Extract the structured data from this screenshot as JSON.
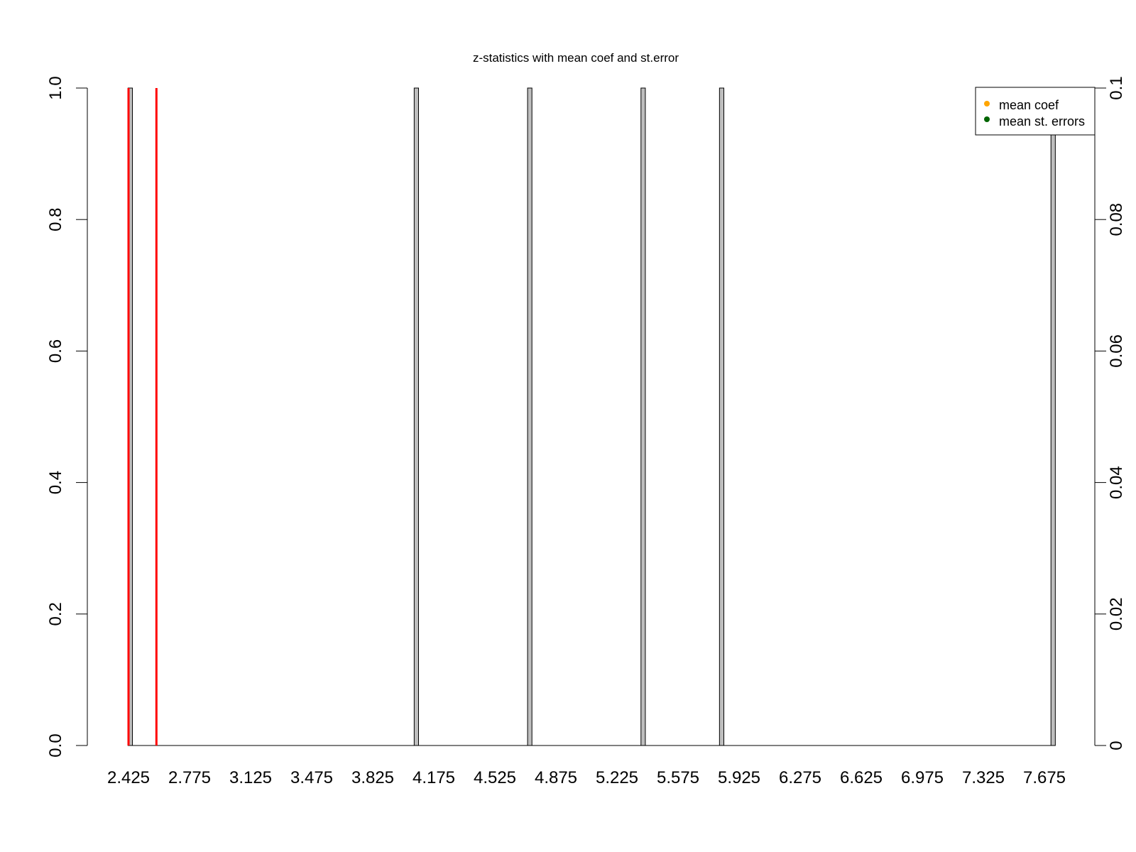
{
  "chart_data": {
    "type": "bar",
    "title": "z-statistics with mean coef and st.error",
    "xlabel": "",
    "ylabel": "",
    "x_tick_labels": [
      "2.425",
      "2.775",
      "3.125",
      "3.475",
      "3.825",
      "4.175",
      "4.525",
      "4.875",
      "5.225",
      "5.575",
      "5.925",
      "6.275",
      "6.625",
      "6.975",
      "7.325",
      "7.675"
    ],
    "x_bin_width": 0.35,
    "bins_per_label": 14,
    "bar_positions": [
      2.435,
      4.075,
      4.725,
      5.375,
      5.825,
      7.725
    ],
    "bar_values": [
      1,
      1,
      1,
      1,
      1,
      1
    ],
    "bar_color": "#bebebe",
    "ylim": [
      0,
      1
    ],
    "y_ticks": [
      0.0,
      0.2,
      0.4,
      0.6,
      0.8,
      1.0
    ],
    "y_tick_labels": [
      "0.0",
      "0.2",
      "0.4",
      "0.6",
      "0.8",
      "1.0"
    ],
    "y2lim": [
      0,
      0.1
    ],
    "y2_ticks": [
      0,
      0.02,
      0.04,
      0.06,
      0.08,
      0.1
    ],
    "y2_tick_labels": [
      "0",
      "0.02",
      "0.04",
      "0.06",
      "0.08",
      "0.1"
    ],
    "vlines": [
      {
        "x": 2.425,
        "color": "#ff0000"
      },
      {
        "x": 2.585,
        "color": "#ff0000"
      }
    ],
    "legend": {
      "placement": "top-right",
      "entries": [
        {
          "label": "mean coef",
          "color": "#ffa500"
        },
        {
          "label": "mean st. errors",
          "color": "#006400"
        }
      ]
    },
    "grid": false
  }
}
